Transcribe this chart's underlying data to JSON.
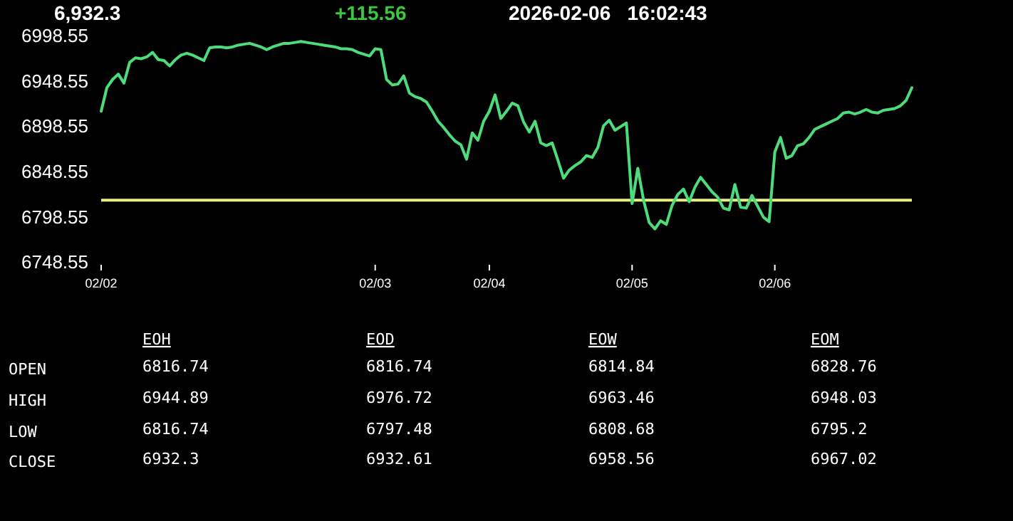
{
  "chart_data": [
    {
      "type": "line",
      "annotations": [
        "6,932.3",
        "+115.56",
        "2026-02-06   16:02:43"
      ],
      "categories": [
        "02/02",
        null,
        null,
        null,
        null,
        null,
        null,
        null,
        null,
        null,
        null,
        null,
        null,
        null,
        null,
        null,
        null,
        null,
        null,
        null,
        null,
        null,
        null,
        null,
        null,
        null,
        null,
        null,
        null,
        null,
        null,
        null,
        null,
        null,
        null,
        null,
        null,
        null,
        null,
        null,
        null,
        null,
        null,
        null,
        null,
        null,
        null,
        null,
        "02/03",
        null,
        null,
        null,
        null,
        null,
        null,
        null,
        null,
        null,
        null,
        null,
        null,
        null,
        null,
        null,
        null,
        null,
        null,
        null,
        "02/04",
        null,
        null,
        null,
        null,
        null,
        null,
        null,
        null,
        null,
        null,
        null,
        null,
        null,
        null,
        null,
        null,
        null,
        null,
        null,
        null,
        null,
        null,
        null,
        null,
        "02/05",
        null,
        null,
        null,
        null,
        null,
        null,
        null,
        null,
        null,
        null,
        null,
        null,
        null,
        null,
        null,
        null,
        null,
        null,
        null,
        null,
        null,
        null,
        null,
        null,
        "02/06",
        null,
        null,
        null,
        null,
        null,
        null,
        null,
        null,
        null,
        null,
        null,
        null,
        null,
        null,
        null,
        null,
        null,
        null,
        null,
        null,
        null,
        null,
        null,
        null
      ],
      "ylim": [
        6748.55,
        6998.55
      ],
      "yticks": [
        6748.55,
        6798.55,
        6848.55,
        6898.55,
        6948.55,
        6998.55
      ],
      "marker": "none",
      "line_style": "solid",
      "ref_lines": [
        {
          "axis": "y",
          "value": 6816.74,
          "color": "#e8f07c"
        }
      ],
      "series": [
        {
          "color": "#4cdc7c",
          "values": [
            6915,
            6941,
            6950,
            6956,
            6946,
            6969,
            6974,
            6973,
            6975,
            6980,
            6972,
            6971,
            6965,
            6972,
            6977,
            6979,
            6977,
            6974,
            6971,
            6985,
            6986,
            6986,
            6985,
            6986,
            6988,
            6989,
            6990,
            6988,
            6986,
            6983,
            6986,
            6988,
            6990,
            6990,
            6991,
            6992,
            6991,
            6990,
            6989,
            6988,
            6987,
            6986,
            6984,
            6984,
            6983,
            6980,
            6978,
            6976,
            6984,
            6983,
            6950,
            6944,
            6945,
            6954,
            6935,
            6931,
            6929,
            6925,
            6915,
            6904,
            6897,
            6889,
            6882,
            6878,
            6862,
            6891,
            6883,
            6904,
            6915,
            6933,
            6907,
            6915,
            6924,
            6921,
            6903,
            6892,
            6904,
            6880,
            6877,
            6880,
            6861,
            6841,
            6850,
            6855,
            6859,
            6866,
            6864,
            6875,
            6899,
            6905,
            6894,
            6898,
            6902,
            6813,
            6852,
            6817,
            6792,
            6785,
            6794,
            6790,
            6811,
            6823,
            6829,
            6815,
            6831,
            6842,
            6834,
            6826,
            6820,
            6808,
            6806,
            6834,
            6809,
            6808,
            6822,
            6810,
            6798,
            6793,
            6870,
            6886,
            6863,
            6866,
            6877,
            6879,
            6886,
            6895,
            6898,
            6901,
            6904,
            6907,
            6913,
            6914,
            6912,
            6914,
            6917,
            6914,
            6913,
            6916,
            6917,
            6918,
            6921,
            6927,
            6941
          ]
        }
      ]
    },
    {
      "type": "other",
      "categories": [
        "EOH",
        "EOD",
        "EOW",
        "EOM"
      ],
      "y_categories": [
        "OPEN",
        "HIGH",
        "LOW",
        "CLOSE"
      ],
      "cell_labels": [
        [
          "6816.74",
          "6816.74",
          "6814.84",
          "6828.76"
        ],
        [
          "6944.89",
          "6976.72",
          "6963.46",
          "6948.03"
        ],
        [
          "6816.74",
          "6797.48",
          "6808.68",
          "6795.2"
        ],
        [
          "6932.3",
          "6932.61",
          "6958.56",
          "6967.02"
        ]
      ]
    }
  ]
}
